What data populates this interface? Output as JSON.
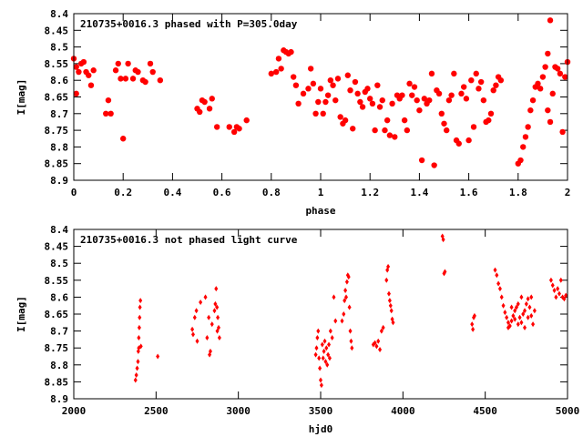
{
  "chart_data": [
    {
      "type": "scatter",
      "title": "210735+0016.3 phased with P=305.0day",
      "xlabel": "phase",
      "ylabel": "I[mag]",
      "xlim": [
        0,
        2
      ],
      "ylim": [
        8.4,
        8.9
      ],
      "y_inverted": true,
      "x_ticks": [
        "0",
        "0.2",
        "0.4",
        "0.6",
        "0.8",
        "1",
        "1.2",
        "1.4",
        "1.6",
        "1.8",
        "2"
      ],
      "x_tick_values": [
        0,
        0.2,
        0.4,
        0.6,
        0.8,
        1.0,
        1.2,
        1.4,
        1.6,
        1.8,
        2.0
      ],
      "y_ticks": [
        "8.4",
        "8.45",
        "8.5",
        "8.55",
        "8.6",
        "8.65",
        "8.7",
        "8.75",
        "8.8",
        "8.85",
        "8.9"
      ],
      "y_tick_values": [
        8.4,
        8.45,
        8.5,
        8.55,
        8.6,
        8.65,
        8.7,
        8.75,
        8.8,
        8.85,
        8.9
      ],
      "marker_color": "#ff0000",
      "points": [
        [
          0.0,
          8.535
        ],
        [
          0.01,
          8.56
        ],
        [
          0.02,
          8.575
        ],
        [
          0.01,
          8.64
        ],
        [
          0.03,
          8.55
        ],
        [
          0.04,
          8.545
        ],
        [
          0.05,
          8.575
        ],
        [
          0.06,
          8.585
        ],
        [
          0.07,
          8.615
        ],
        [
          0.08,
          8.57
        ],
        [
          0.13,
          8.7
        ],
        [
          0.14,
          8.66
        ],
        [
          0.15,
          8.7
        ],
        [
          0.17,
          8.57
        ],
        [
          0.18,
          8.55
        ],
        [
          0.19,
          8.595
        ],
        [
          0.21,
          8.595
        ],
        [
          0.2,
          8.775
        ],
        [
          0.22,
          8.55
        ],
        [
          0.24,
          8.595
        ],
        [
          0.25,
          8.57
        ],
        [
          0.26,
          8.575
        ],
        [
          0.28,
          8.6
        ],
        [
          0.29,
          8.605
        ],
        [
          0.31,
          8.55
        ],
        [
          0.32,
          8.575
        ],
        [
          0.35,
          8.6
        ],
        [
          0.5,
          8.685
        ],
        [
          0.51,
          8.695
        ],
        [
          0.52,
          8.66
        ],
        [
          0.53,
          8.665
        ],
        [
          0.55,
          8.685
        ],
        [
          0.56,
          8.655
        ],
        [
          0.58,
          8.74
        ],
        [
          0.63,
          8.74
        ],
        [
          0.65,
          8.755
        ],
        [
          0.66,
          8.74
        ],
        [
          0.67,
          8.745
        ],
        [
          0.7,
          8.72
        ],
        [
          0.8,
          8.58
        ],
        [
          0.82,
          8.575
        ],
        [
          0.83,
          8.535
        ],
        [
          0.84,
          8.565
        ],
        [
          0.85,
          8.51
        ],
        [
          0.86,
          8.515
        ],
        [
          0.87,
          8.52
        ],
        [
          0.88,
          8.515
        ],
        [
          0.89,
          8.59
        ],
        [
          0.9,
          8.615
        ],
        [
          0.91,
          8.67
        ],
        [
          0.93,
          8.64
        ],
        [
          0.95,
          8.625
        ],
        [
          0.96,
          8.565
        ],
        [
          0.97,
          8.61
        ],
        [
          0.98,
          8.7
        ],
        [
          0.99,
          8.665
        ],
        [
          1.0,
          8.625
        ],
        [
          1.01,
          8.7
        ],
        [
          1.02,
          8.665
        ],
        [
          1.03,
          8.645
        ],
        [
          1.04,
          8.6
        ],
        [
          1.05,
          8.615
        ],
        [
          1.06,
          8.66
        ],
        [
          1.07,
          8.595
        ],
        [
          1.08,
          8.71
        ],
        [
          1.09,
          8.73
        ],
        [
          1.1,
          8.72
        ],
        [
          1.11,
          8.585
        ],
        [
          1.12,
          8.63
        ],
        [
          1.13,
          8.745
        ],
        [
          1.14,
          8.605
        ],
        [
          1.15,
          8.64
        ],
        [
          1.16,
          8.665
        ],
        [
          1.17,
          8.68
        ],
        [
          1.18,
          8.635
        ],
        [
          1.19,
          8.625
        ],
        [
          1.2,
          8.655
        ],
        [
          1.21,
          8.67
        ],
        [
          1.22,
          8.75
        ],
        [
          1.23,
          8.615
        ],
        [
          1.24,
          8.68
        ],
        [
          1.25,
          8.66
        ],
        [
          1.26,
          8.75
        ],
        [
          1.27,
          8.72
        ],
        [
          1.28,
          8.765
        ],
        [
          1.29,
          8.67
        ],
        [
          1.3,
          8.77
        ],
        [
          1.31,
          8.645
        ],
        [
          1.32,
          8.655
        ],
        [
          1.33,
          8.645
        ],
        [
          1.34,
          8.72
        ],
        [
          1.35,
          8.75
        ],
        [
          1.36,
          8.61
        ],
        [
          1.37,
          8.645
        ],
        [
          1.38,
          8.62
        ],
        [
          1.39,
          8.66
        ],
        [
          1.4,
          8.69
        ],
        [
          1.41,
          8.84
        ],
        [
          1.42,
          8.655
        ],
        [
          1.43,
          8.67
        ],
        [
          1.44,
          8.66
        ],
        [
          1.45,
          8.58
        ],
        [
          1.46,
          8.855
        ],
        [
          1.47,
          8.63
        ],
        [
          1.48,
          8.64
        ],
        [
          1.49,
          8.7
        ],
        [
          1.5,
          8.73
        ],
        [
          1.51,
          8.75
        ],
        [
          1.52,
          8.66
        ],
        [
          1.53,
          8.645
        ],
        [
          1.54,
          8.58
        ],
        [
          1.55,
          8.78
        ],
        [
          1.56,
          8.79
        ],
        [
          1.57,
          8.64
        ],
        [
          1.58,
          8.62
        ],
        [
          1.59,
          8.655
        ],
        [
          1.6,
          8.78
        ],
        [
          1.61,
          8.6
        ],
        [
          1.62,
          8.74
        ],
        [
          1.63,
          8.58
        ],
        [
          1.64,
          8.625
        ],
        [
          1.65,
          8.605
        ],
        [
          1.66,
          8.66
        ],
        [
          1.67,
          8.725
        ],
        [
          1.68,
          8.72
        ],
        [
          1.69,
          8.7
        ],
        [
          1.7,
          8.63
        ],
        [
          1.71,
          8.615
        ],
        [
          1.72,
          8.59
        ],
        [
          1.73,
          8.6
        ],
        [
          1.8,
          8.85
        ],
        [
          1.81,
          8.84
        ],
        [
          1.82,
          8.8
        ],
        [
          1.83,
          8.77
        ],
        [
          1.84,
          8.74
        ],
        [
          1.85,
          8.69
        ],
        [
          1.86,
          8.66
        ],
        [
          1.87,
          8.62
        ],
        [
          1.88,
          8.61
        ],
        [
          1.89,
          8.625
        ],
        [
          1.9,
          8.59
        ],
        [
          1.91,
          8.56
        ],
        [
          1.92,
          8.52
        ],
        [
          1.93,
          8.42
        ],
        [
          1.92,
          8.69
        ],
        [
          1.93,
          8.725
        ],
        [
          1.94,
          8.64
        ],
        [
          1.95,
          8.56
        ],
        [
          1.96,
          8.565
        ],
        [
          1.97,
          8.58
        ],
        [
          1.98,
          8.755
        ],
        [
          1.99,
          8.59
        ],
        [
          2.0,
          8.545
        ]
      ]
    },
    {
      "type": "scatter",
      "title": "210735+0016.3 not phased light curve",
      "xlabel": "hjd0",
      "ylabel": "I[mag]",
      "xlim": [
        2000,
        5000
      ],
      "ylim": [
        8.4,
        8.9
      ],
      "y_inverted": true,
      "x_ticks": [
        "2000",
        "2500",
        "3000",
        "3500",
        "4000",
        "4500",
        "5000"
      ],
      "x_tick_values": [
        2000,
        2500,
        3000,
        3500,
        4000,
        4500,
        5000
      ],
      "y_ticks": [
        "8.4",
        "8.45",
        "8.5",
        "8.55",
        "8.6",
        "8.65",
        "8.7",
        "8.75",
        "8.8",
        "8.85",
        "8.9"
      ],
      "y_tick_values": [
        8.4,
        8.45,
        8.5,
        8.55,
        8.6,
        8.65,
        8.7,
        8.75,
        8.8,
        8.85,
        8.9
      ],
      "marker_color": "#ff0000",
      "points": [
        [
          2375,
          8.845
        ],
        [
          2380,
          8.83
        ],
        [
          2385,
          8.81
        ],
        [
          2390,
          8.79
        ],
        [
          2392,
          8.76
        ],
        [
          2395,
          8.72
        ],
        [
          2398,
          8.69
        ],
        [
          2400,
          8.66
        ],
        [
          2402,
          8.63
        ],
        [
          2405,
          8.61
        ],
        [
          2395,
          8.75
        ],
        [
          2408,
          8.745
        ],
        [
          2510,
          8.775
        ],
        [
          2720,
          8.695
        ],
        [
          2725,
          8.71
        ],
        [
          2735,
          8.66
        ],
        [
          2745,
          8.64
        ],
        [
          2750,
          8.73
        ],
        [
          2770,
          8.615
        ],
        [
          2800,
          8.6
        ],
        [
          2810,
          8.72
        ],
        [
          2820,
          8.66
        ],
        [
          2825,
          8.77
        ],
        [
          2830,
          8.76
        ],
        [
          2840,
          8.68
        ],
        [
          2855,
          8.64
        ],
        [
          2860,
          8.62
        ],
        [
          2865,
          8.575
        ],
        [
          2870,
          8.63
        ],
        [
          2872,
          8.7
        ],
        [
          2875,
          8.66
        ],
        [
          2880,
          8.69
        ],
        [
          2885,
          8.72
        ],
        [
          3470,
          8.77
        ],
        [
          3475,
          8.75
        ],
        [
          3480,
          8.72
        ],
        [
          3485,
          8.7
        ],
        [
          3490,
          8.78
        ],
        [
          3495,
          8.81
        ],
        [
          3500,
          8.845
        ],
        [
          3505,
          8.86
        ],
        [
          3510,
          8.74
        ],
        [
          3515,
          8.78
        ],
        [
          3520,
          8.76
        ],
        [
          3525,
          8.73
        ],
        [
          3530,
          8.79
        ],
        [
          3535,
          8.75
        ],
        [
          3540,
          8.8
        ],
        [
          3545,
          8.77
        ],
        [
          3550,
          8.74
        ],
        [
          3555,
          8.78
        ],
        [
          3560,
          8.7
        ],
        [
          3570,
          8.72
        ],
        [
          3580,
          8.6
        ],
        [
          3590,
          8.67
        ],
        [
          3630,
          8.67
        ],
        [
          3640,
          8.65
        ],
        [
          3645,
          8.61
        ],
        [
          3650,
          8.58
        ],
        [
          3655,
          8.6
        ],
        [
          3660,
          8.555
        ],
        [
          3665,
          8.535
        ],
        [
          3670,
          8.54
        ],
        [
          3675,
          8.63
        ],
        [
          3680,
          8.7
        ],
        [
          3685,
          8.73
        ],
        [
          3690,
          8.75
        ],
        [
          3820,
          8.74
        ],
        [
          3830,
          8.735
        ],
        [
          3840,
          8.745
        ],
        [
          3850,
          8.73
        ],
        [
          3860,
          8.755
        ],
        [
          3870,
          8.7
        ],
        [
          3880,
          8.69
        ],
        [
          3900,
          8.55
        ],
        [
          3905,
          8.52
        ],
        [
          3910,
          8.51
        ],
        [
          3915,
          8.59
        ],
        [
          3920,
          8.61
        ],
        [
          3925,
          8.625
        ],
        [
          3930,
          8.64
        ],
        [
          3935,
          8.665
        ],
        [
          3940,
          8.675
        ],
        [
          4240,
          8.42
        ],
        [
          4245,
          8.43
        ],
        [
          4250,
          8.53
        ],
        [
          4255,
          8.525
        ],
        [
          4420,
          8.68
        ],
        [
          4425,
          8.695
        ],
        [
          4430,
          8.66
        ],
        [
          4435,
          8.655
        ],
        [
          4560,
          8.52
        ],
        [
          4570,
          8.535
        ],
        [
          4580,
          8.56
        ],
        [
          4590,
          8.575
        ],
        [
          4600,
          8.6
        ],
        [
          4610,
          8.625
        ],
        [
          4620,
          8.645
        ],
        [
          4630,
          8.66
        ],
        [
          4640,
          8.675
        ],
        [
          4650,
          8.685
        ],
        [
          4660,
          8.67
        ],
        [
          4670,
          8.655
        ],
        [
          4680,
          8.64
        ],
        [
          4690,
          8.63
        ],
        [
          4700,
          8.62
        ],
        [
          4710,
          8.66
        ],
        [
          4720,
          8.675
        ],
        [
          4730,
          8.65
        ],
        [
          4740,
          8.64
        ],
        [
          4750,
          8.62
        ],
        [
          4760,
          8.605
        ],
        [
          4770,
          8.63
        ],
        [
          4780,
          8.655
        ],
        [
          4790,
          8.68
        ],
        [
          4800,
          8.64
        ],
        [
          4640,
          8.69
        ],
        [
          4660,
          8.63
        ],
        [
          4680,
          8.665
        ],
        [
          4700,
          8.68
        ],
        [
          4720,
          8.6
        ],
        [
          4740,
          8.69
        ],
        [
          4760,
          8.66
        ],
        [
          4780,
          8.6
        ],
        [
          4900,
          8.55
        ],
        [
          4910,
          8.565
        ],
        [
          4920,
          8.58
        ],
        [
          4930,
          8.6
        ],
        [
          4940,
          8.575
        ],
        [
          4950,
          8.59
        ],
        [
          4960,
          8.55
        ],
        [
          4970,
          8.6
        ],
        [
          4980,
          8.605
        ],
        [
          4990,
          8.595
        ]
      ]
    }
  ]
}
